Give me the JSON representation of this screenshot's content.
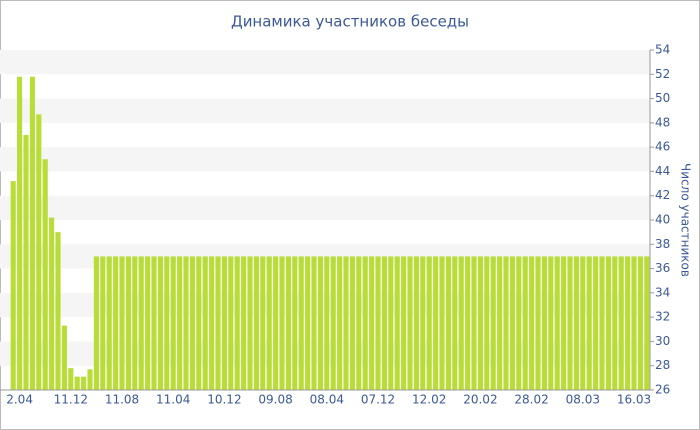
{
  "chart_data": {
    "type": "bar",
    "title": "Динамика участников беседы",
    "y_label": "Число участников",
    "categories": [
      null,
      "2.04",
      null,
      null,
      null,
      null,
      null,
      null,
      null,
      "11.12",
      null,
      null,
      null,
      null,
      null,
      null,
      null,
      "11.08",
      null,
      null,
      null,
      null,
      null,
      null,
      null,
      "11.04",
      null,
      null,
      null,
      null,
      null,
      null,
      null,
      "10.12",
      null,
      null,
      null,
      null,
      null,
      null,
      null,
      "09.08",
      null,
      null,
      null,
      null,
      null,
      null,
      null,
      "08.04",
      null,
      null,
      null,
      null,
      null,
      null,
      null,
      "07.12",
      null,
      null,
      null,
      null,
      null,
      null,
      null,
      "12.02",
      null,
      null,
      null,
      null,
      null,
      null,
      null,
      "20.02",
      null,
      null,
      null,
      null,
      null,
      null,
      null,
      "28.02",
      null,
      null,
      null,
      null,
      null,
      null,
      null,
      "08.03",
      null,
      null,
      null,
      null,
      null,
      null,
      null,
      "16.03",
      null,
      null
    ],
    "values": [
      43.2,
      51.8,
      47,
      51.8,
      48.7,
      45,
      40.2,
      39,
      31.3,
      27.8,
      27.1,
      27.1,
      27.7,
      37,
      37,
      37,
      37,
      37,
      37,
      37,
      37,
      37,
      37,
      37,
      37,
      37,
      37,
      37,
      37,
      37,
      37,
      37,
      37,
      37,
      37,
      37,
      37,
      37,
      37,
      37,
      37,
      37,
      37,
      37,
      37,
      37,
      37,
      37,
      37,
      37,
      37,
      37,
      37,
      37,
      37,
      37,
      37,
      37,
      37,
      37,
      37,
      37,
      37,
      37,
      37,
      37,
      37,
      37,
      37,
      37,
      37,
      37,
      37,
      37,
      37,
      37,
      37,
      37,
      37,
      37,
      37,
      37,
      37,
      37,
      37,
      37,
      37,
      37,
      37,
      37,
      37,
      37,
      37,
      37,
      37,
      37,
      37,
      37,
      37,
      37
    ],
    "color": "#b8dd37",
    "ylim": [
      26,
      54
    ],
    "yticks": [
      26,
      28,
      30,
      32,
      34,
      36,
      38,
      40,
      42,
      44,
      46,
      48,
      50,
      52,
      54
    ],
    "y_axis_side": "right",
    "grid": true
  }
}
